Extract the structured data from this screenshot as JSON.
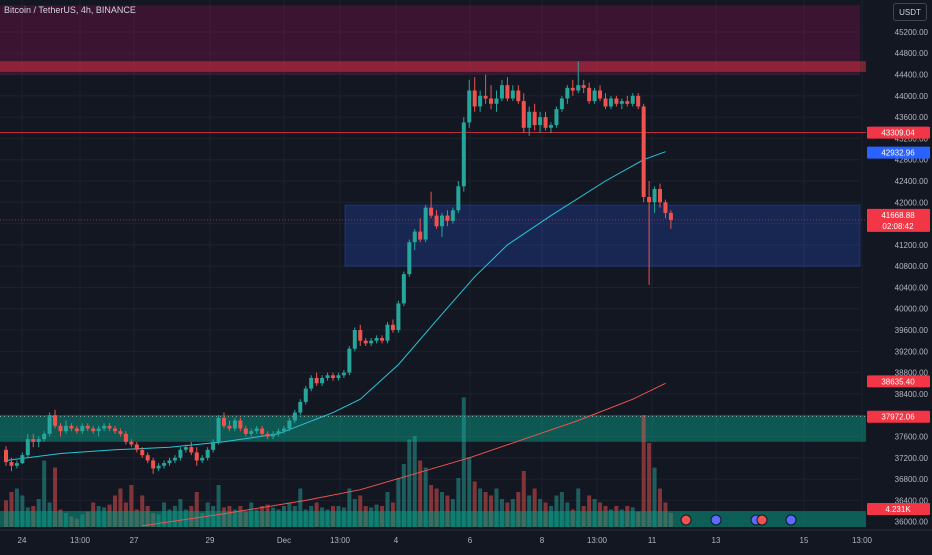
{
  "header": {
    "symbol_title": "Bitcoin / TetherUS, 4h, BINANCE",
    "currency": "USDT"
  },
  "colors": {
    "background": "#131722",
    "bull": "#26a69a",
    "bear": "#ef5350",
    "ma_fast": "#26c6da",
    "ma_slow": "#ef5350",
    "grid": "#1e222d"
  },
  "chart_data": {
    "type": "candlestick",
    "y_axis": {
      "ticks": [
        "45200.00",
        "44800.00",
        "44400.00",
        "44000.00",
        "43600.00",
        "43200.00",
        "42800.00",
        "42400.00",
        "42000.00",
        "41600.00",
        "41200.00",
        "40800.00",
        "40400.00",
        "40000.00",
        "39600.00",
        "39200.00",
        "38800.00",
        "38400.00",
        "38000.00",
        "37600.00",
        "37200.00",
        "36800.00",
        "36400.00",
        "36000.00"
      ],
      "range": [
        35900,
        45800
      ]
    },
    "x_axis": {
      "ticks": [
        "24",
        "13:00",
        "27",
        "29",
        "Dec",
        "13:00",
        "4",
        "6",
        "8",
        "13:00",
        "11",
        "13",
        "15",
        "13:00"
      ]
    },
    "price_labels": [
      {
        "name": "resistance-level",
        "text": "43309.04",
        "color": "#f23645"
      },
      {
        "name": "ma-fast-value",
        "text": "42932.96",
        "color": "#2962ff"
      },
      {
        "name": "last-price",
        "text": "41668.88",
        "color": "#f23645"
      },
      {
        "name": "countdown",
        "text": "02:08:42",
        "color": "#f23645"
      },
      {
        "name": "ma-slow-value",
        "text": "38635.40",
        "color": "#f23645"
      },
      {
        "name": "support-level",
        "text": "37972.06",
        "color": "#f23645"
      },
      {
        "name": "volume-value",
        "text": "4.231K",
        "color": "#f23645"
      }
    ],
    "candles": [
      [
        37350,
        37420,
        37050,
        37120
      ],
      [
        37120,
        37200,
        36950,
        37050
      ],
      [
        37050,
        37150,
        37000,
        37100
      ],
      [
        37100,
        37300,
        37080,
        37250
      ],
      [
        37250,
        37650,
        37200,
        37550
      ],
      [
        37550,
        37650,
        37400,
        37500
      ],
      [
        37500,
        37600,
        37400,
        37550
      ],
      [
        37550,
        37700,
        37500,
        37650
      ],
      [
        37650,
        38050,
        37600,
        38000
      ],
      [
        38000,
        38100,
        37750,
        37800
      ],
      [
        37800,
        37850,
        37600,
        37700
      ],
      [
        37700,
        37900,
        37650,
        37800
      ],
      [
        37800,
        37850,
        37700,
        37750
      ],
      [
        37750,
        37800,
        37650,
        37700
      ],
      [
        37700,
        37850,
        37650,
        37800
      ],
      [
        37800,
        37850,
        37700,
        37750
      ],
      [
        37750,
        37800,
        37650,
        37700
      ],
      [
        37700,
        37800,
        37600,
        37750
      ],
      [
        37750,
        37850,
        37700,
        37800
      ],
      [
        37800,
        37850,
        37700,
        37750
      ],
      [
        37750,
        37800,
        37650,
        37700
      ],
      [
        37700,
        37750,
        37600,
        37650
      ],
      [
        37650,
        37700,
        37450,
        37500
      ],
      [
        37500,
        37550,
        37400,
        37450
      ],
      [
        37450,
        37500,
        37300,
        37350
      ],
      [
        37350,
        37400,
        37200,
        37250
      ],
      [
        37250,
        37300,
        37100,
        37150
      ],
      [
        37150,
        37200,
        36900,
        37000
      ],
      [
        37000,
        37100,
        36950,
        37050
      ],
      [
        37050,
        37150,
        37000,
        37100
      ],
      [
        37100,
        37200,
        37050,
        37150
      ],
      [
        37150,
        37250,
        37100,
        37200
      ],
      [
        37200,
        37400,
        37150,
        37350
      ],
      [
        37350,
        37450,
        37300,
        37400
      ],
      [
        37400,
        37500,
        37250,
        37300
      ],
      [
        37300,
        37400,
        37050,
        37150
      ],
      [
        37150,
        37250,
        37100,
        37200
      ],
      [
        37200,
        37400,
        37150,
        37350
      ],
      [
        37350,
        37550,
        37300,
        37500
      ],
      [
        37500,
        38000,
        37450,
        37950
      ],
      [
        37950,
        38050,
        37750,
        37800
      ],
      [
        37800,
        37900,
        37700,
        37750
      ],
      [
        37750,
        37950,
        37700,
        37900
      ],
      [
        37900,
        37950,
        37700,
        37750
      ],
      [
        37750,
        37800,
        37600,
        37650
      ],
      [
        37650,
        37750,
        37600,
        37700
      ],
      [
        37700,
        37800,
        37650,
        37750
      ],
      [
        37750,
        37800,
        37600,
        37650
      ],
      [
        37650,
        37700,
        37550,
        37600
      ],
      [
        37600,
        37700,
        37550,
        37650
      ],
      [
        37650,
        37750,
        37600,
        37700
      ],
      [
        37700,
        37800,
        37650,
        37750
      ],
      [
        37750,
        37950,
        37700,
        37900
      ],
      [
        37900,
        38100,
        37850,
        38050
      ],
      [
        38050,
        38300,
        38000,
        38250
      ],
      [
        38250,
        38550,
        38200,
        38500
      ],
      [
        38500,
        38750,
        38450,
        38700
      ],
      [
        38700,
        38800,
        38550,
        38600
      ],
      [
        38600,
        38750,
        38550,
        38700
      ],
      [
        38700,
        38800,
        38650,
        38750
      ],
      [
        38750,
        38800,
        38650,
        38700
      ],
      [
        38700,
        38800,
        38650,
        38750
      ],
      [
        38750,
        38850,
        38700,
        38800
      ],
      [
        38800,
        39300,
        38750,
        39250
      ],
      [
        39250,
        39650,
        39200,
        39600
      ],
      [
        39600,
        39700,
        39300,
        39400
      ],
      [
        39400,
        39450,
        39300,
        39350
      ],
      [
        39350,
        39450,
        39300,
        39400
      ],
      [
        39400,
        39500,
        39350,
        39450
      ],
      [
        39450,
        39500,
        39350,
        39400
      ],
      [
        39400,
        39750,
        39350,
        39700
      ],
      [
        39700,
        39800,
        39550,
        39600
      ],
      [
        39600,
        40150,
        39550,
        40100
      ],
      [
        40100,
        40700,
        40050,
        40650
      ],
      [
        40650,
        41300,
        40600,
        41250
      ],
      [
        41250,
        41500,
        41100,
        41450
      ],
      [
        41450,
        41700,
        41250,
        41300
      ],
      [
        41300,
        41950,
        41250,
        41900
      ],
      [
        41900,
        42200,
        41700,
        41750
      ],
      [
        41750,
        41850,
        41500,
        41550
      ],
      [
        41550,
        41800,
        41350,
        41750
      ],
      [
        41750,
        41850,
        41550,
        41650
      ],
      [
        41650,
        41900,
        41600,
        41850
      ],
      [
        41850,
        42400,
        41800,
        42300
      ],
      [
        42300,
        43600,
        42200,
        43500
      ],
      [
        43500,
        44300,
        43400,
        44100
      ],
      [
        44100,
        44350,
        43700,
        43800
      ],
      [
        43800,
        44100,
        43700,
        44000
      ],
      [
        44000,
        44400,
        43850,
        43950
      ],
      [
        43950,
        44200,
        43750,
        43850
      ],
      [
        43850,
        44100,
        43700,
        43950
      ],
      [
        43950,
        44300,
        43900,
        44200
      ],
      [
        44200,
        44350,
        43900,
        43950
      ],
      [
        43950,
        44200,
        43900,
        44100
      ],
      [
        44100,
        44200,
        43850,
        43900
      ],
      [
        43900,
        44050,
        43300,
        43400
      ],
      [
        43400,
        43800,
        43250,
        43700
      ],
      [
        43700,
        43850,
        43350,
        43450
      ],
      [
        43450,
        43700,
        43300,
        43600
      ],
      [
        43600,
        43700,
        43350,
        43400
      ],
      [
        43400,
        43500,
        43300,
        43450
      ],
      [
        43450,
        43800,
        43400,
        43750
      ],
      [
        43750,
        44000,
        43700,
        43950
      ],
      [
        43950,
        44200,
        43850,
        44150
      ],
      [
        44150,
        44300,
        44000,
        44100
      ],
      [
        44100,
        44650,
        44050,
        44200
      ],
      [
        44200,
        44300,
        44050,
        44150
      ],
      [
        44150,
        44250,
        43850,
        43900
      ],
      [
        43900,
        44150,
        43850,
        44100
      ],
      [
        44100,
        44200,
        43900,
        43950
      ],
      [
        43950,
        44050,
        43750,
        43800
      ],
      [
        43800,
        44000,
        43750,
        43950
      ],
      [
        43950,
        44000,
        43800,
        43850
      ],
      [
        43850,
        43950,
        43750,
        43900
      ],
      [
        43900,
        44000,
        43800,
        43850
      ],
      [
        43850,
        44050,
        43800,
        44000
      ],
      [
        44000,
        44050,
        43750,
        43800
      ],
      [
        43800,
        43850,
        42000,
        42100
      ],
      [
        42100,
        42400,
        40450,
        42000
      ],
      [
        42000,
        42300,
        41800,
        42250
      ],
      [
        42250,
        42350,
        41900,
        42000
      ],
      [
        42000,
        42050,
        41700,
        41800
      ],
      [
        41800,
        41850,
        41500,
        41669
      ]
    ],
    "ma_fast": {
      "name": "MA fast",
      "values": [
        [
          0,
          37150
        ],
        [
          10,
          37280
        ],
        [
          20,
          37350
        ],
        [
          30,
          37400
        ],
        [
          40,
          37500
        ],
        [
          50,
          37650
        ],
        [
          60,
          38050
        ],
        [
          65,
          38300
        ],
        [
          72,
          38950
        ],
        [
          80,
          39900
        ],
        [
          86,
          40600
        ],
        [
          92,
          41200
        ],
        [
          100,
          41750
        ],
        [
          110,
          42400
        ],
        [
          117,
          42800
        ],
        [
          121,
          42950
        ]
      ]
    },
    "ma_slow": {
      "name": "MA slow",
      "values": [
        [
          25,
          35920
        ],
        [
          40,
          36150
        ],
        [
          55,
          36400
        ],
        [
          65,
          36600
        ],
        [
          75,
          36900
        ],
        [
          85,
          37200
        ],
        [
          95,
          37550
        ],
        [
          105,
          37900
        ],
        [
          115,
          38300
        ],
        [
          121,
          38600
        ]
      ]
    },
    "volumes": [
      0.38,
      0.5,
      0.55,
      0.45,
      0.28,
      0.3,
      0.4,
      0.95,
      0.35,
      0.85,
      0.25,
      0.2,
      0.15,
      0.12,
      0.18,
      0.22,
      0.35,
      0.3,
      0.28,
      0.32,
      0.45,
      0.55,
      0.35,
      0.6,
      0.25,
      0.45,
      0.3,
      0.2,
      0.18,
      0.35,
      0.25,
      0.3,
      0.4,
      0.25,
      0.3,
      0.5,
      0.2,
      0.35,
      0.3,
      0.6,
      0.28,
      0.3,
      0.25,
      0.3,
      0.22,
      0.35,
      0.25,
      0.3,
      0.32,
      0.28,
      0.25,
      0.3,
      0.35,
      0.3,
      0.55,
      0.25,
      0.3,
      0.35,
      0.28,
      0.25,
      0.3,
      0.3,
      0.28,
      0.55,
      0.4,
      0.45,
      0.3,
      0.28,
      0.32,
      0.3,
      0.5,
      0.35,
      0.7,
      0.9,
      1.25,
      1.3,
      0.95,
      0.85,
      0.6,
      0.55,
      0.5,
      0.45,
      0.4,
      0.7,
      1.85,
      1.0,
      0.65,
      0.55,
      0.5,
      0.45,
      0.55,
      0.4,
      0.35,
      0.4,
      0.5,
      0.8,
      0.45,
      0.55,
      0.4,
      0.35,
      0.3,
      0.45,
      0.5,
      0.35,
      0.25,
      0.55,
      0.3,
      0.45,
      0.4,
      0.35,
      0.3,
      0.25,
      0.3,
      0.25,
      0.3,
      0.28,
      0.22,
      1.6,
      1.2,
      0.85,
      0.55,
      0.35,
      0.2
    ]
  }
}
